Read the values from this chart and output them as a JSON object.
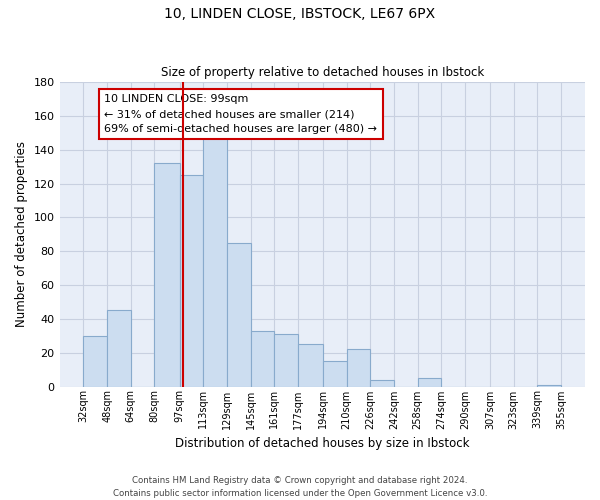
{
  "title": "10, LINDEN CLOSE, IBSTOCK, LE67 6PX",
  "subtitle": "Size of property relative to detached houses in Ibstock",
  "xlabel": "Distribution of detached houses by size in Ibstock",
  "ylabel": "Number of detached properties",
  "bar_color": "#ccddf0",
  "bar_edge_color": "#88aacc",
  "bin_labels": [
    "32sqm",
    "48sqm",
    "64sqm",
    "80sqm",
    "97sqm",
    "113sqm",
    "129sqm",
    "145sqm",
    "161sqm",
    "177sqm",
    "194sqm",
    "210sqm",
    "226sqm",
    "242sqm",
    "258sqm",
    "274sqm",
    "290sqm",
    "307sqm",
    "323sqm",
    "339sqm",
    "355sqm"
  ],
  "bin_edges": [
    32,
    48,
    64,
    80,
    97,
    113,
    129,
    145,
    161,
    177,
    194,
    210,
    226,
    242,
    258,
    274,
    290,
    307,
    323,
    339,
    355
  ],
  "bar_heights": [
    30,
    45,
    0,
    132,
    125,
    147,
    85,
    33,
    31,
    25,
    15,
    22,
    4,
    0,
    5,
    0,
    0,
    0,
    0,
    1
  ],
  "ylim": [
    0,
    180
  ],
  "yticks": [
    0,
    20,
    40,
    60,
    80,
    100,
    120,
    140,
    160,
    180
  ],
  "property_line_x": 99,
  "property_line_color": "#cc0000",
  "annotation_title": "10 LINDEN CLOSE: 99sqm",
  "annotation_line1": "← 31% of detached houses are smaller (214)",
  "annotation_line2": "69% of semi-detached houses are larger (480) →",
  "footer_line1": "Contains HM Land Registry data © Crown copyright and database right 2024.",
  "footer_line2": "Contains public sector information licensed under the Open Government Licence v3.0.",
  "background_color": "#ffffff",
  "grid_color": "#c8d0e0",
  "plot_bg_color": "#e8eef8"
}
